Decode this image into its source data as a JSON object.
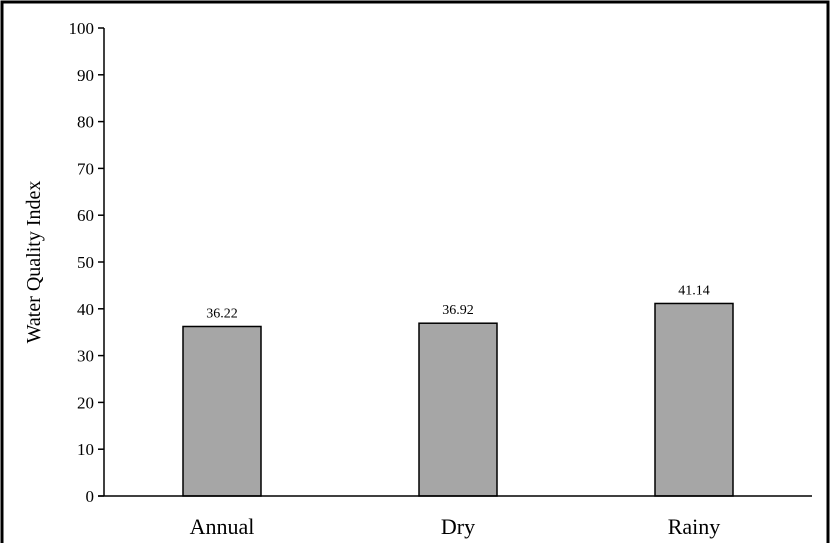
{
  "chart_data": {
    "type": "bar",
    "title": "",
    "xlabel": "",
    "ylabel": "Water Quality Index",
    "ylim": [
      0,
      100
    ],
    "yticks": [
      0,
      10,
      20,
      30,
      40,
      50,
      60,
      70,
      80,
      90,
      100
    ],
    "categories": [
      "Annual",
      "Dry",
      "Rainy"
    ],
    "values": [
      36.22,
      36.92,
      41.14
    ],
    "data_labels": [
      "36.22",
      "36.92",
      "41.14"
    ],
    "grid": false,
    "legend": "none",
    "colors": {
      "bar_fill": "#a6a6a6",
      "bar_stroke": "#000000",
      "axis": "#000000",
      "frame": "#000000"
    }
  }
}
